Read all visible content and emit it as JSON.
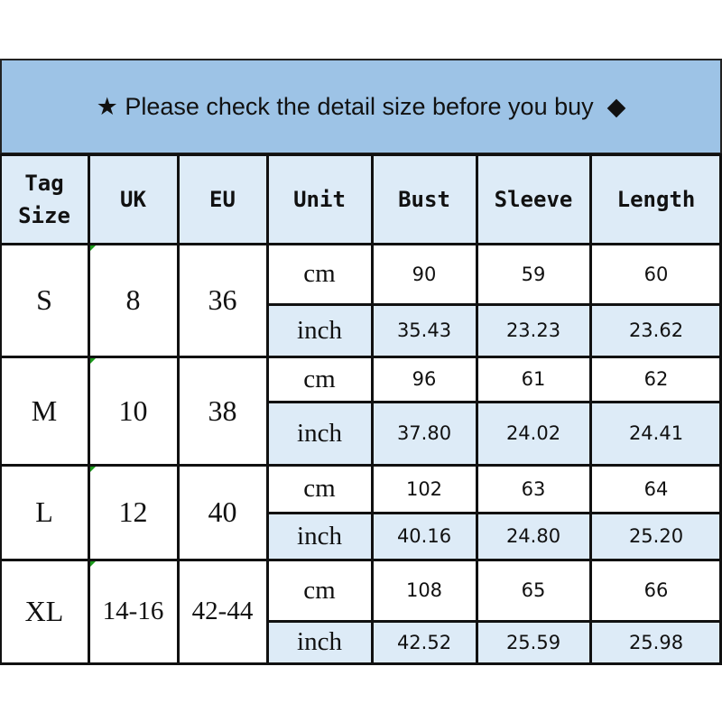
{
  "banner": {
    "star_icon": "★",
    "text": "Please check the detail size before you buy",
    "diamond_icon": "◆"
  },
  "headers": [
    "Tag\nSize",
    "UK",
    "EU",
    "Unit",
    "Bust",
    "Sleeve",
    "Length"
  ],
  "units": {
    "cm": "cm",
    "inch": "inch"
  },
  "rows": [
    {
      "tag": "S",
      "uk": "8",
      "eu": "36",
      "cm": [
        "90",
        "59",
        "60"
      ],
      "inch": [
        "35.43",
        "23.23",
        "23.62"
      ]
    },
    {
      "tag": "M",
      "uk": "10",
      "eu": "38",
      "cm": [
        "96",
        "61",
        "62"
      ],
      "inch": [
        "37.80",
        "24.02",
        "24.41"
      ]
    },
    {
      "tag": "L",
      "uk": "12",
      "eu": "40",
      "cm": [
        "102",
        "63",
        "64"
      ],
      "inch": [
        "40.16",
        "24.80",
        "25.20"
      ]
    },
    {
      "tag": "XL",
      "uk": "14-16",
      "eu": "42-44",
      "cm": [
        "108",
        "65",
        "66"
      ],
      "inch": [
        "42.52",
        "25.59",
        "25.98"
      ]
    }
  ],
  "colors": {
    "banner": "#9DC3E6",
    "header": "#DDEBF7",
    "inch_row": "#DDEBF7"
  }
}
